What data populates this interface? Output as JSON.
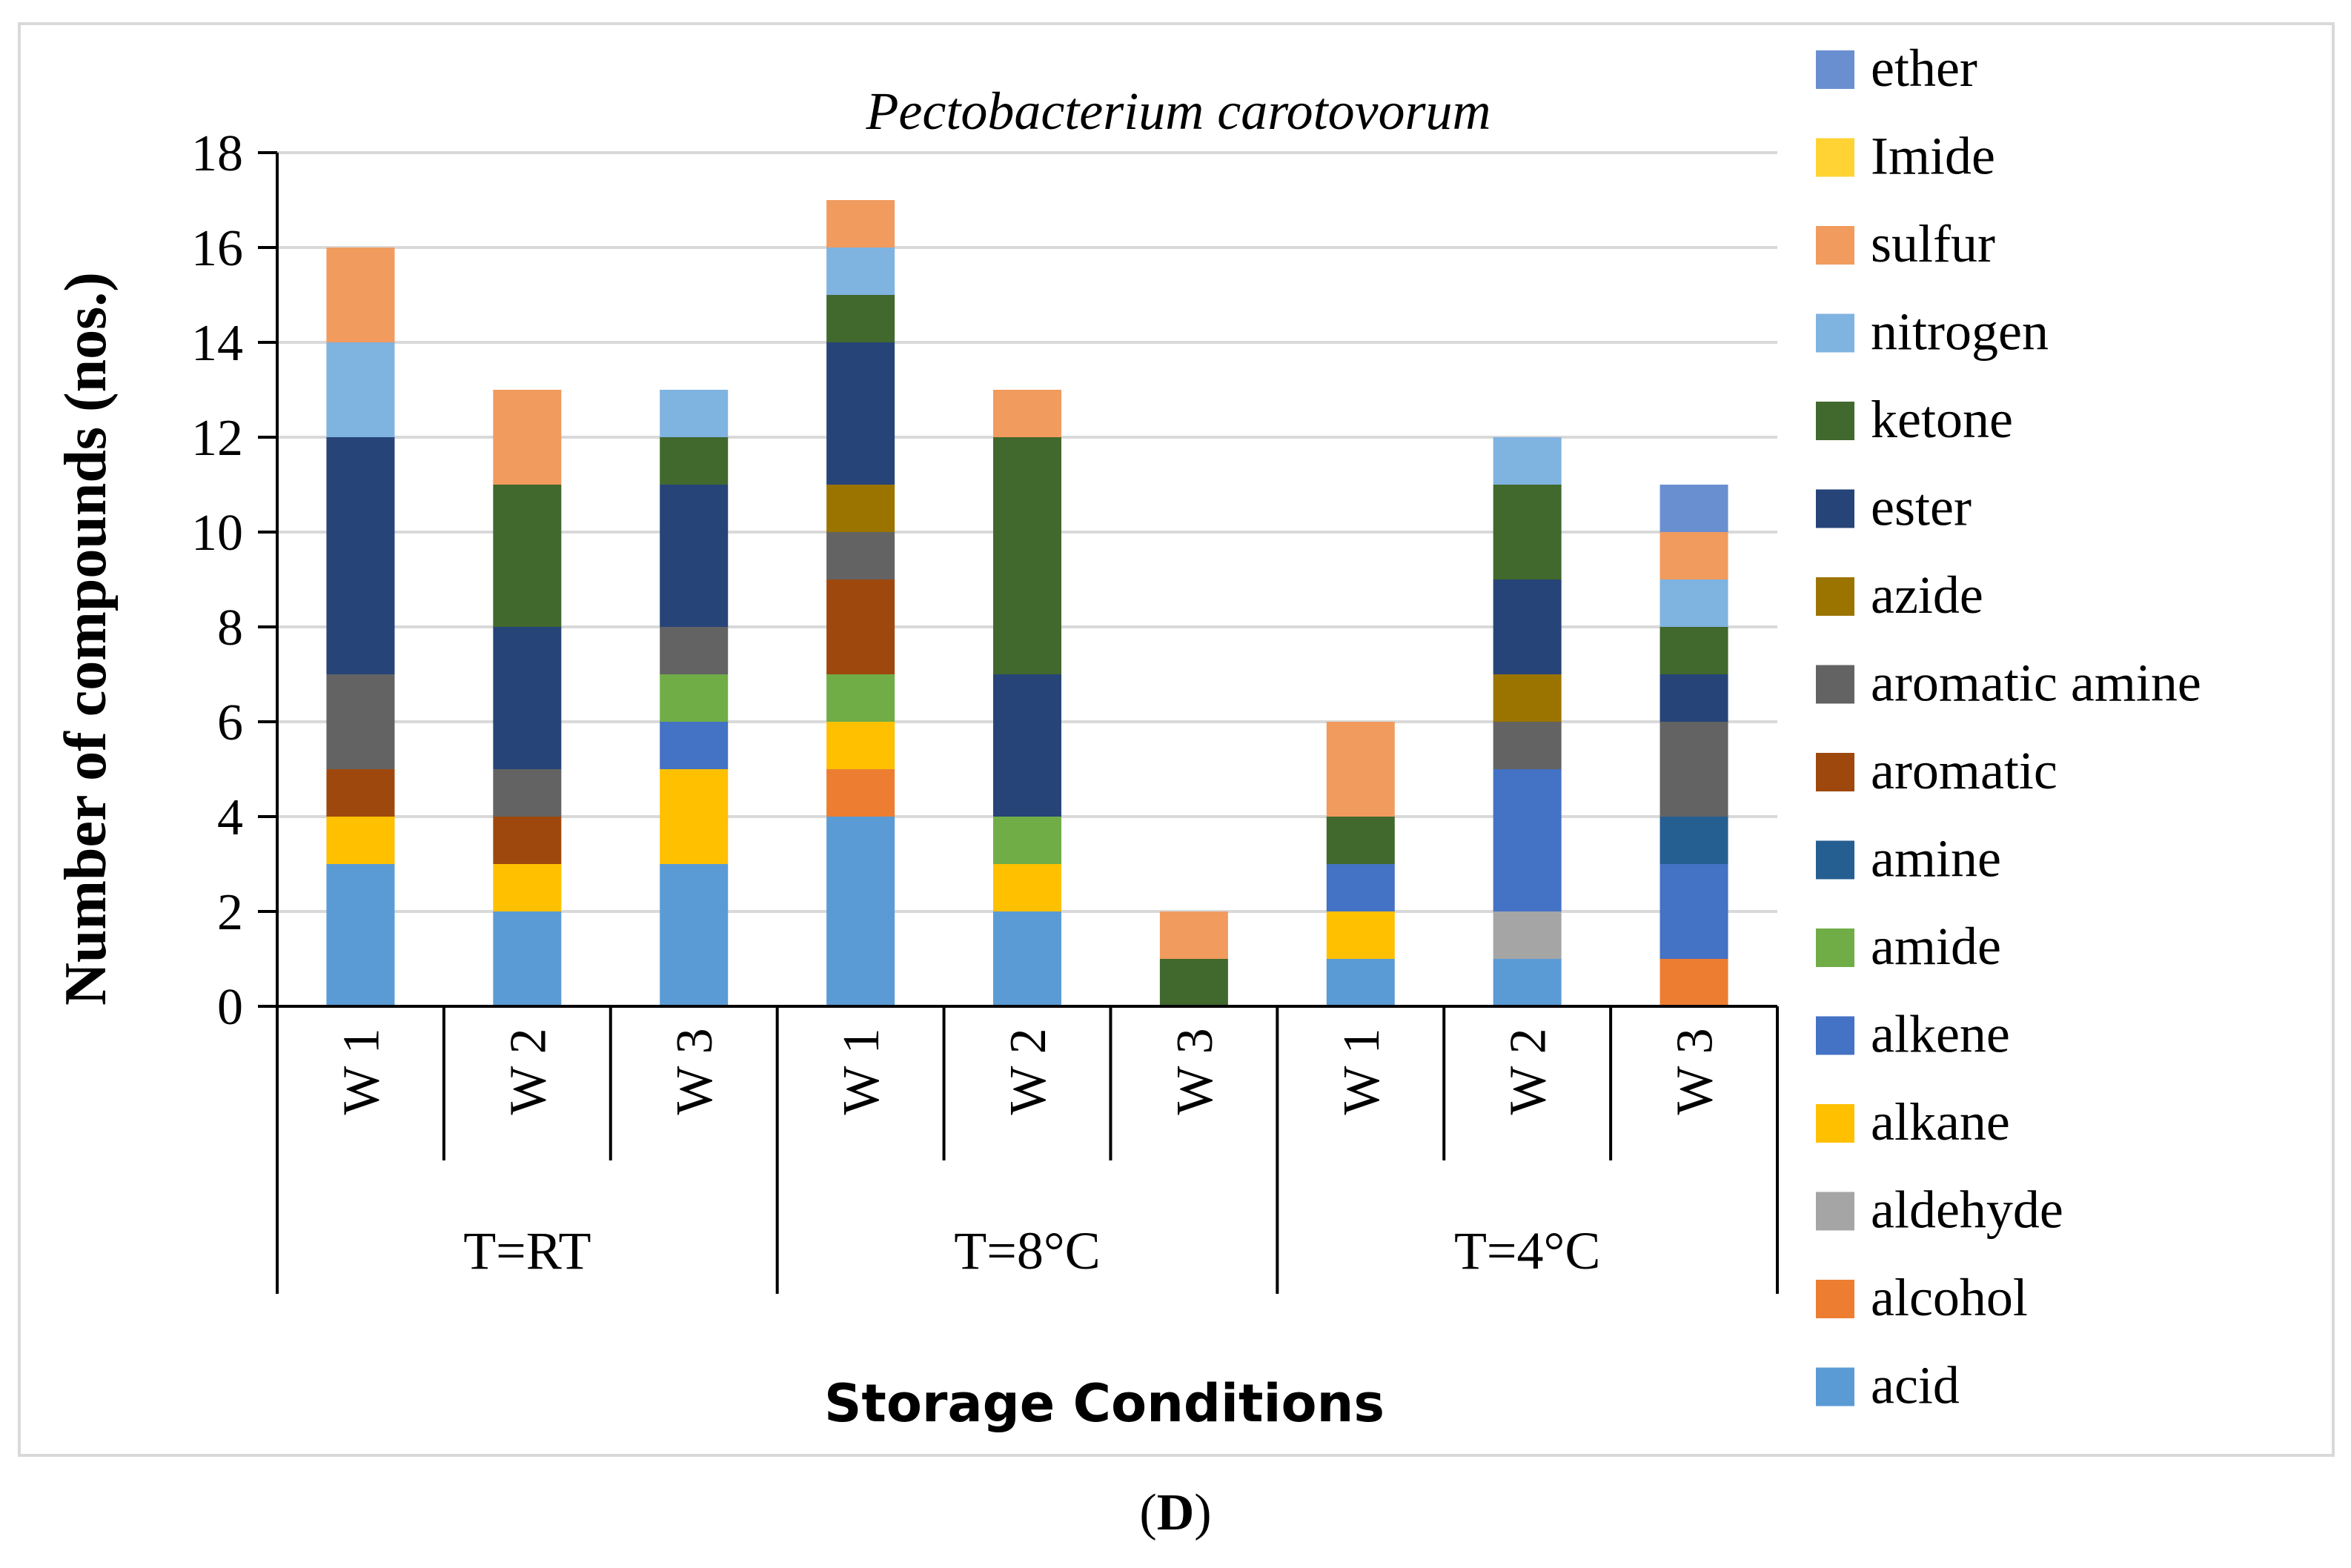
{
  "figure_label_open": "(",
  "figure_label_letter": "D",
  "figure_label_close": ")",
  "colors": {
    "ether": "#6a8fd0",
    "Imide": "#ffd333",
    "sulfur": "#f19b5e",
    "nitrogen": "#7fb3e0",
    "ketone": "#41682d",
    "ester": "#264478",
    "azide": "#9b7400",
    "aromatic amine": "#636363",
    "aromatic": "#9e480e",
    "amine": "#255e91",
    "amide": "#70ad47",
    "alkene": "#4472c4",
    "alkane": "#ffc000",
    "aldehyde": "#a5a5a5",
    "alcohol": "#ed7d31",
    "acid": "#5b9bd5"
  },
  "chart_data": {
    "type": "bar",
    "stacked": true,
    "title": "Pectobacterium carotovorum",
    "xlabel": "Storage Conditions",
    "ylabel": "Number of compounds (nos.)",
    "ylim": [
      0,
      18
    ],
    "yticks": [
      0,
      2,
      4,
      6,
      8,
      10,
      12,
      14,
      16,
      18
    ],
    "grid": true,
    "legend_position": "right",
    "groups": [
      {
        "label": "T=RT",
        "categories": [
          "W 1",
          "W 2",
          "W 3"
        ]
      },
      {
        "label": "T=8°C",
        "categories": [
          "W 1",
          "W 2",
          "W 3"
        ]
      },
      {
        "label": "T=4°C",
        "categories": [
          "W 1",
          "W 2",
          "W 3"
        ]
      }
    ],
    "categories": [
      "W 1",
      "W 2",
      "W 3",
      "W 1",
      "W 2",
      "W 3",
      "W 1",
      "W 2",
      "W 3"
    ],
    "series": [
      {
        "name": "acid",
        "values": [
          3,
          2,
          3,
          4,
          2,
          0,
          1,
          1,
          0
        ]
      },
      {
        "name": "alcohol",
        "values": [
          0,
          0,
          0,
          1,
          0,
          0,
          0,
          0,
          1
        ]
      },
      {
        "name": "aldehyde",
        "values": [
          0,
          0,
          0,
          0,
          0,
          0,
          0,
          1,
          0
        ]
      },
      {
        "name": "alkane",
        "values": [
          1,
          1,
          2,
          1,
          1,
          0,
          1,
          0,
          0
        ]
      },
      {
        "name": "alkene",
        "values": [
          0,
          0,
          1,
          0,
          0,
          0,
          1,
          3,
          2
        ]
      },
      {
        "name": "amide",
        "values": [
          0,
          0,
          1,
          1,
          1,
          0,
          0,
          0,
          0
        ]
      },
      {
        "name": "amine",
        "values": [
          0,
          0,
          0,
          0,
          0,
          0,
          0,
          0,
          1
        ]
      },
      {
        "name": "aromatic",
        "values": [
          1,
          1,
          0,
          2,
          0,
          0,
          0,
          0,
          0
        ]
      },
      {
        "name": "aromatic amine",
        "values": [
          2,
          1,
          1,
          1,
          0,
          0,
          0,
          1,
          2
        ]
      },
      {
        "name": "azide",
        "values": [
          0,
          0,
          0,
          1,
          0,
          0,
          0,
          1,
          0
        ]
      },
      {
        "name": "ester",
        "values": [
          5,
          3,
          3,
          3,
          3,
          0,
          0,
          2,
          1
        ]
      },
      {
        "name": "ketone",
        "values": [
          0,
          3,
          1,
          1,
          5,
          1,
          1,
          2,
          1
        ]
      },
      {
        "name": "nitrogen",
        "values": [
          2,
          0,
          1,
          1,
          0,
          0,
          0,
          1,
          1
        ]
      },
      {
        "name": "sulfur",
        "values": [
          2,
          2,
          0,
          1,
          1,
          1,
          2,
          0,
          1
        ]
      },
      {
        "name": "Imide",
        "values": [
          0,
          0,
          0,
          0,
          0,
          0,
          0,
          0,
          0
        ]
      },
      {
        "name": "ether",
        "values": [
          0,
          0,
          0,
          0,
          0,
          0,
          0,
          0,
          1
        ]
      }
    ],
    "legend_order": [
      "ether",
      "Imide",
      "sulfur",
      "nitrogen",
      "ketone",
      "ester",
      "azide",
      "aromatic amine",
      "aromatic",
      "amine",
      "amide",
      "alkene",
      "alkane",
      "aldehyde",
      "alcohol",
      "acid"
    ]
  }
}
